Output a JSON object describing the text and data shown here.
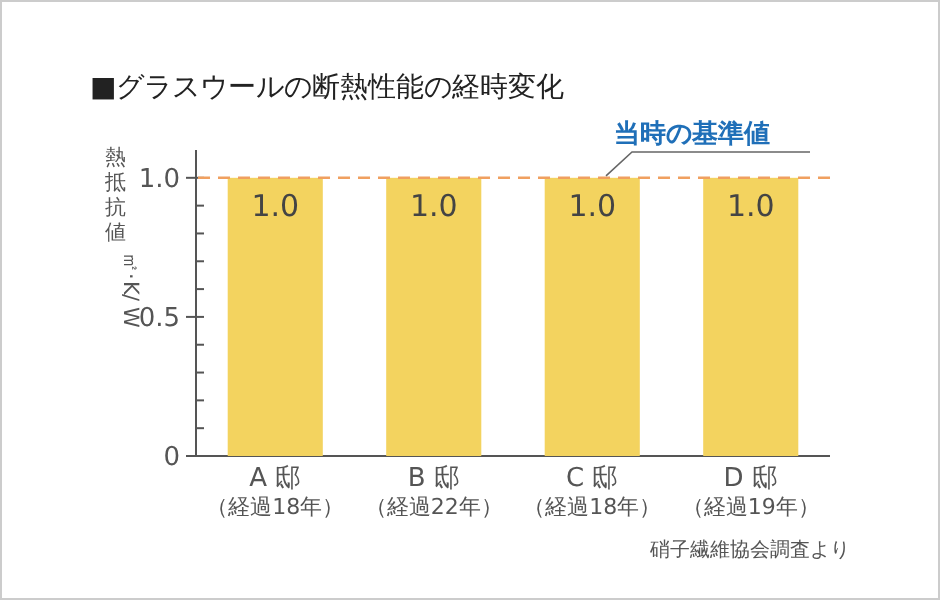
{
  "chart_data": {
    "type": "bar",
    "title": "■グラスウールの断熱性能の経時変化",
    "ylabel": "熱抵抗値㎡·K/W",
    "categories": [
      "A 邸（経過18年）",
      "B 邸（経過22年）",
      "C 邸（経過18年）",
      "D 邸（経過19年）"
    ],
    "values": [
      1.0,
      1.0,
      1.0,
      1.0
    ],
    "color": "#f3d35f",
    "value_labels": [
      "1.0",
      "1.0",
      "1.0",
      "1.0"
    ],
    "ylim": [
      0,
      1.1
    ],
    "yticks": [
      0,
      {
        "value": 0.1,
        "label": null
      },
      {
        "value": 0.2,
        "label": null
      },
      {
        "value": 0.3,
        "label": null
      },
      {
        "value": 0.4,
        "label": null
      },
      0.5,
      {
        "value": 0.6,
        "label": null
      },
      {
        "value": 0.7,
        "label": null
      },
      {
        "value": 0.8,
        "label": null
      },
      {
        "value": 0.9,
        "label": null
      },
      {
        "value": 1.0,
        "label": "1.0"
      }
    ],
    "ref_lines": [
      {
        "axis": "y",
        "value": 1.0,
        "label": "当時の基準値",
        "color": "#f0a060",
        "line_style": "dashed"
      }
    ],
    "annotations": [
      "硝子繊維協会調査より"
    ]
  }
}
